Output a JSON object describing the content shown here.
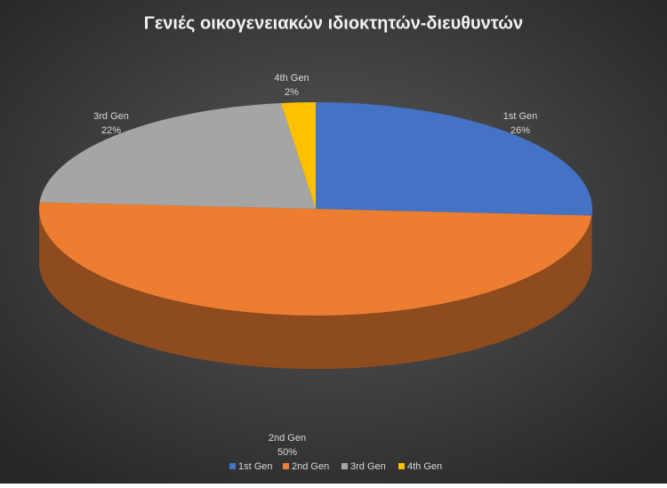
{
  "chart_data": {
    "type": "pie3d",
    "title": "Γενιές οικογενειακών ιδιοκτητών-διευθυντών",
    "categories": [
      "1st Gen",
      "2nd Gen",
      "3rd Gen",
      "4th Gen"
    ],
    "values": [
      26,
      50,
      22,
      2
    ],
    "value_labels": [
      "26%",
      "50%",
      "22%",
      "2%"
    ],
    "colors": [
      "#4472c4",
      "#ed7d31",
      "#a5a5a5",
      "#ffc000"
    ],
    "legend": "bottom"
  }
}
